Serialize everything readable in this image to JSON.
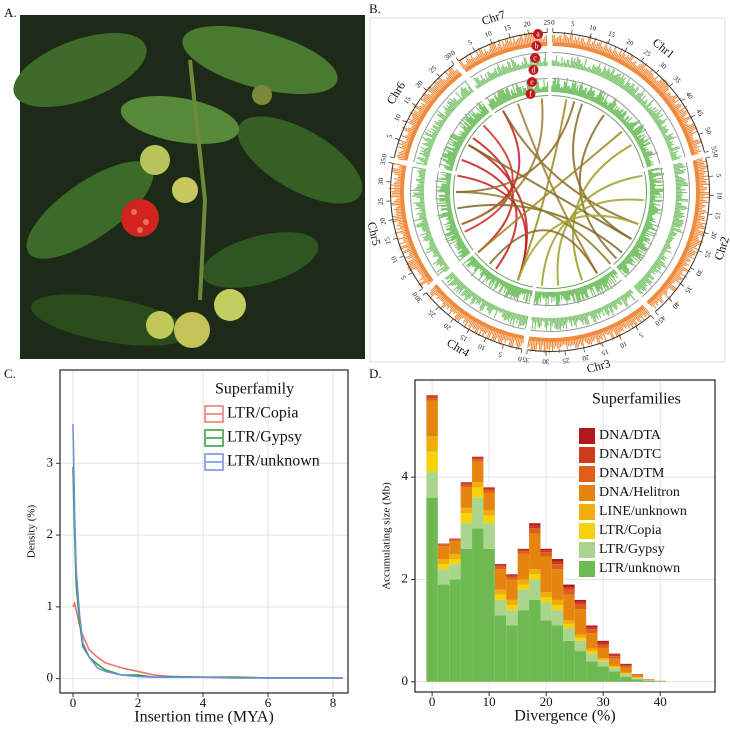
{
  "panel_labels": [
    "A.",
    "B.",
    "C.",
    "D."
  ],
  "circos": {
    "chromosomes": [
      {
        "name": "Chr1",
        "length": 55,
        "ticks": [
          0,
          5,
          10,
          15,
          20,
          25,
          30,
          35,
          40,
          45,
          50,
          55
        ]
      },
      {
        "name": "Chr2",
        "length": 45,
        "ticks": [
          0,
          5,
          10,
          15,
          20,
          25,
          30,
          35,
          40,
          45
        ]
      },
      {
        "name": "Chr3",
        "length": 35,
        "ticks": [
          0,
          5,
          10,
          15,
          20,
          25,
          30,
          35
        ]
      },
      {
        "name": "Chr4",
        "length": 30,
        "ticks": [
          0,
          5,
          10,
          15,
          20,
          25,
          30
        ]
      },
      {
        "name": "Chr5",
        "length": 35,
        "ticks": [
          0,
          5,
          10,
          15,
          20,
          25,
          30,
          35
        ]
      },
      {
        "name": "Chr6",
        "length": 30,
        "ticks": [
          0,
          5,
          10,
          15,
          20,
          25,
          30
        ]
      },
      {
        "name": "Chr7",
        "length": 25,
        "ticks": [
          0,
          5,
          10,
          15,
          20,
          25
        ]
      }
    ],
    "track_labels": [
      "a",
      "b",
      "c",
      "d",
      "e",
      "f"
    ]
  },
  "chart_data": [
    {
      "type": "line",
      "xlabel": "Insertion time (MYA)",
      "ylabel": "Density (%)",
      "legend_title": "Superfamily",
      "legend": "upper right",
      "grid": true,
      "x": [
        0,
        0.05,
        0.1,
        0.2,
        0.3,
        0.5,
        0.75,
        1,
        1.5,
        2,
        2.5,
        3,
        4,
        5,
        6,
        7,
        8,
        8.3
      ],
      "series": [
        {
          "name": "LTR/Copia",
          "color": "#e8766d",
          "values": [
            1.0,
            1.05,
            0.95,
            0.75,
            0.6,
            0.4,
            0.3,
            0.22,
            0.15,
            0.1,
            0.05,
            0.03,
            0.02,
            0.02,
            0.01,
            0.01,
            0.01,
            0.01
          ]
        },
        {
          "name": "LTR/Gypsy",
          "color": "#2e9a3c",
          "values": [
            2.95,
            2.0,
            1.3,
            0.8,
            0.45,
            0.3,
            0.2,
            0.12,
            0.05,
            0.05,
            0.02,
            0.03,
            0.02,
            0.02,
            0.01,
            0.01,
            0.01,
            0.01
          ]
        },
        {
          "name": "LTR/unknown",
          "color": "#6f8fd8",
          "values": [
            3.55,
            2.3,
            1.5,
            0.9,
            0.5,
            0.3,
            0.15,
            0.1,
            0.05,
            0.03,
            0.02,
            0.02,
            0.02,
            0.01,
            0.01,
            0.01,
            0.01,
            0.01
          ]
        }
      ],
      "xlim": [
        -0.4,
        8.46
      ],
      "xticks": [
        0,
        2,
        4,
        6,
        8
      ],
      "ylim": [
        -0.2,
        4.3
      ],
      "yticks": [
        0,
        1,
        2,
        3
      ]
    },
    {
      "type": "histogram",
      "xlabel": "Divergence (%)",
      "ylabel": "Accumulating size (Mb)",
      "legend_title": "Superfamilies",
      "legend": "upper right",
      "grid": true,
      "stacked": true,
      "bins": [
        -1,
        1,
        3,
        5,
        7,
        9,
        11,
        13,
        15,
        17,
        19,
        21,
        23,
        25,
        27,
        29,
        31,
        33,
        35,
        37,
        39,
        41
      ],
      "series": [
        {
          "name": "LTR/unknown",
          "color": "#6fb952",
          "values": [
            3.6,
            1.9,
            2.0,
            2.6,
            3.0,
            2.6,
            1.3,
            1.1,
            1.4,
            1.6,
            1.2,
            1.1,
            0.8,
            0.6,
            0.4,
            0.3,
            0.2,
            0.1,
            0.05,
            0.02,
            0.01
          ]
        },
        {
          "name": "LTR/Gypsy",
          "color": "#a9d58c",
          "values": [
            0.5,
            0.3,
            0.3,
            0.5,
            0.6,
            0.5,
            0.3,
            0.3,
            0.4,
            0.4,
            0.35,
            0.3,
            0.25,
            0.2,
            0.15,
            0.1,
            0.07,
            0.05,
            0.02,
            0.01,
            0
          ]
        },
        {
          "name": "LTR/Copia",
          "color": "#f6d20a",
          "values": [
            0.4,
            0.1,
            0.1,
            0.2,
            0.2,
            0.15,
            0.1,
            0.1,
            0.1,
            0.1,
            0.1,
            0.1,
            0.08,
            0.06,
            0.05,
            0.03,
            0.02,
            0.01,
            0.01,
            0,
            0
          ]
        },
        {
          "name": "LINE/unknown",
          "color": "#efae0c",
          "values": [
            0.3,
            0.1,
            0.1,
            0.1,
            0.1,
            0.1,
            0.1,
            0.1,
            0.1,
            0.1,
            0.1,
            0.1,
            0.07,
            0.06,
            0.05,
            0.03,
            0.02,
            0.02,
            0.01,
            0,
            0
          ]
        },
        {
          "name": "DNA/Helitron",
          "color": "#e5850f",
          "values": [
            0.7,
            0.25,
            0.25,
            0.4,
            0.4,
            0.35,
            0.4,
            0.4,
            0.5,
            0.7,
            0.7,
            0.6,
            0.5,
            0.5,
            0.3,
            0.2,
            0.14,
            0.1,
            0.04,
            0.01,
            0.01
          ]
        },
        {
          "name": "DNA/DTM",
          "color": "#df5e1c",
          "values": [
            0.05,
            0.03,
            0.03,
            0.05,
            0.05,
            0.05,
            0.05,
            0.05,
            0.05,
            0.1,
            0.08,
            0.1,
            0.1,
            0.1,
            0.08,
            0.06,
            0.05,
            0.03,
            0.01,
            0.01,
            0
          ]
        },
        {
          "name": "DNA/DTC",
          "color": "#cf3a1c",
          "values": [
            0.03,
            0.01,
            0.01,
            0.03,
            0.03,
            0.03,
            0.03,
            0.03,
            0.03,
            0.05,
            0.04,
            0.05,
            0.05,
            0.05,
            0.04,
            0.04,
            0.03,
            0.02,
            0.01,
            0,
            0
          ]
        },
        {
          "name": "DNA/DTA",
          "color": "#b0181c",
          "values": [
            0.02,
            0.01,
            0.01,
            0.02,
            0.02,
            0.02,
            0.02,
            0.02,
            0.02,
            0.05,
            0.03,
            0.05,
            0.05,
            0.03,
            0.03,
            0.04,
            0.02,
            0.02,
            0,
            0,
            0
          ]
        }
      ],
      "xlim": [
        -3,
        49.6
      ],
      "xticks": [
        0,
        10,
        20,
        30,
        40
      ],
      "ylim": [
        -0.2,
        5.9
      ],
      "yticks": [
        0,
        2,
        4
      ]
    }
  ]
}
